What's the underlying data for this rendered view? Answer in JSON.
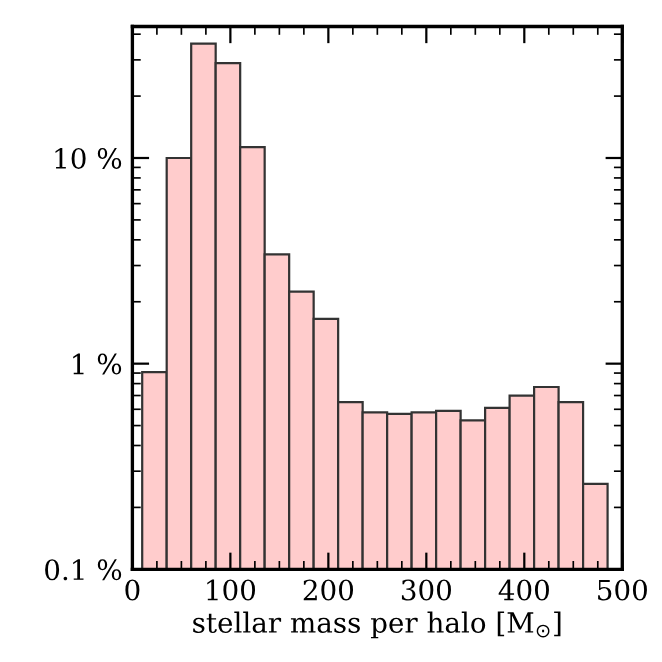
{
  "chart_data": {
    "type": "histogram",
    "xlabel": "stellar mass per halo [M$_{⊙}$]",
    "bins": [
      10,
      35,
      60,
      85,
      110,
      135,
      160,
      185,
      210,
      235,
      260,
      285,
      310,
      335,
      360,
      385,
      410,
      435,
      460,
      485
    ],
    "values": [
      0.91,
      10,
      36,
      28.9,
      11.3,
      3.4,
      2.24,
      1.65,
      0.65,
      0.58,
      0.57,
      0.58,
      0.59,
      0.53,
      0.61,
      0.7,
      0.77,
      0.65,
      0.26
    ],
    "color": "#ffcccc",
    "log": "y",
    "xlim": [
      0,
      500
    ],
    "xticks": [
      0,
      100,
      200,
      300,
      400,
      500
    ],
    "ylim": [
      0.1,
      43.6
    ],
    "yticks": [
      {
        "value": 0.1,
        "label": "0.1 %"
      },
      {
        "value": 1,
        "label": "1 %"
      },
      {
        "value": 10,
        "label": "10 %"
      }
    ],
    "grid": false
  }
}
